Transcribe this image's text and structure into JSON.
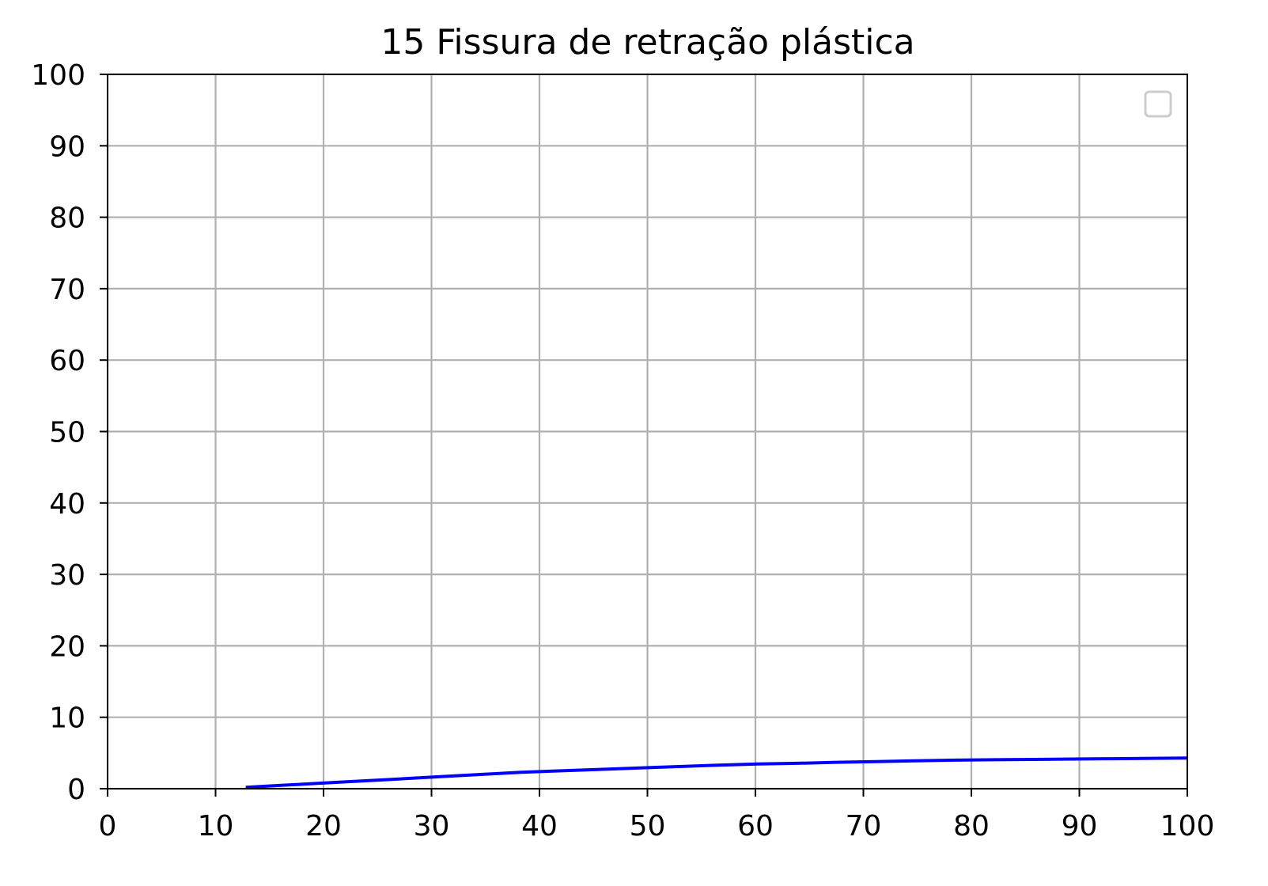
{
  "chart_data": {
    "type": "line",
    "title": "15 Fissura de retração plástica",
    "xlabel": "",
    "ylabel": "",
    "xlim": [
      0,
      100
    ],
    "ylim": [
      0,
      100
    ],
    "xticks": [
      0,
      10,
      20,
      30,
      40,
      50,
      60,
      70,
      80,
      90,
      100
    ],
    "yticks": [
      0,
      10,
      20,
      30,
      40,
      50,
      60,
      70,
      80,
      90,
      100
    ],
    "grid": true,
    "legend": {
      "placement": "top-right",
      "entries": []
    },
    "series": [
      {
        "color": "#0000ff",
        "x": [
          12.8,
          16.4,
          20.1,
          23.7,
          27.4,
          31.0,
          34.7,
          38.3,
          42.0,
          45.6,
          49.3,
          52.9,
          56.6,
          60.2,
          63.9,
          67.5,
          71.2,
          74.8,
          78.5,
          82.1,
          85.8,
          89.4,
          93.1,
          96.7,
          100
        ],
        "y": [
          0.2,
          0.5,
          0.8,
          1.1,
          1.4,
          1.7,
          2.0,
          2.3,
          2.5,
          2.7,
          2.9,
          3.1,
          3.3,
          3.45,
          3.55,
          3.7,
          3.8,
          3.9,
          4.0,
          4.05,
          4.1,
          4.15,
          4.2,
          4.25,
          4.3
        ]
      }
    ]
  },
  "colors": {
    "axes": "#000000",
    "grid": "#b0b0b0",
    "legend_frame": "#cccccc",
    "line": "#0000ff"
  }
}
